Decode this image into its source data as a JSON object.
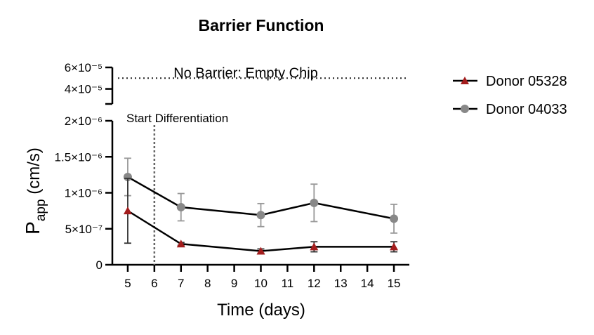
{
  "chart_data": {
    "type": "line",
    "title": "Barrier Function",
    "xlabel": "Time (days)",
    "ylabel_main": "P",
    "ylabel_sub": "app",
    "ylabel_unit": " (cm/s)",
    "x_ticks": [
      "5",
      "6",
      "7",
      "8",
      "9",
      "10",
      "11",
      "12",
      "13",
      "14",
      "15"
    ],
    "x_range": [
      4.5,
      15.5
    ],
    "y_lower_ticks": [
      "0",
      "5×10⁻⁷",
      "1×10⁻⁶",
      "1.5×10⁻⁶",
      "2×10⁻⁶"
    ],
    "y_lower_tick_values": [
      0,
      5e-07,
      1e-06,
      1.5e-06,
      2e-06
    ],
    "y_lower_range": [
      0,
      2e-06
    ],
    "y_upper_ticks": [
      "4×10⁻⁵",
      "6×10⁻⁵"
    ],
    "y_upper_tick_values": [
      4e-05,
      6e-05
    ],
    "y_upper_range": [
      2.6e-05,
      6e-05
    ],
    "reference_line": {
      "label": "No Barrier: Empty  Chip",
      "value": 5e-05,
      "style": "dotted"
    },
    "vertical_marker": {
      "label": "Start Differentiation",
      "x": 6,
      "style": "dotted"
    },
    "series": [
      {
        "name": "Donor 05328",
        "marker": "triangle",
        "color": "#a31d1d",
        "error_color": "#333333",
        "x": [
          5,
          7,
          10,
          12,
          15
        ],
        "values": [
          7.5e-07,
          2.9e-07,
          1.9e-07,
          2.5e-07,
          2.5e-07
        ],
        "error": [
          4.5e-07,
          2e-08,
          3e-08,
          7e-08,
          7e-08
        ]
      },
      {
        "name": "Donor 04033",
        "marker": "circle",
        "color": "#888888",
        "error_color": "#999999",
        "x": [
          5,
          7,
          10,
          12,
          15
        ],
        "values": [
          1.22e-06,
          8e-07,
          6.9e-07,
          8.6e-07,
          6.4e-07
        ],
        "error": [
          2.6e-07,
          1.9e-07,
          1.6e-07,
          2.6e-07,
          2e-07
        ]
      }
    ],
    "legend_position": "right"
  }
}
